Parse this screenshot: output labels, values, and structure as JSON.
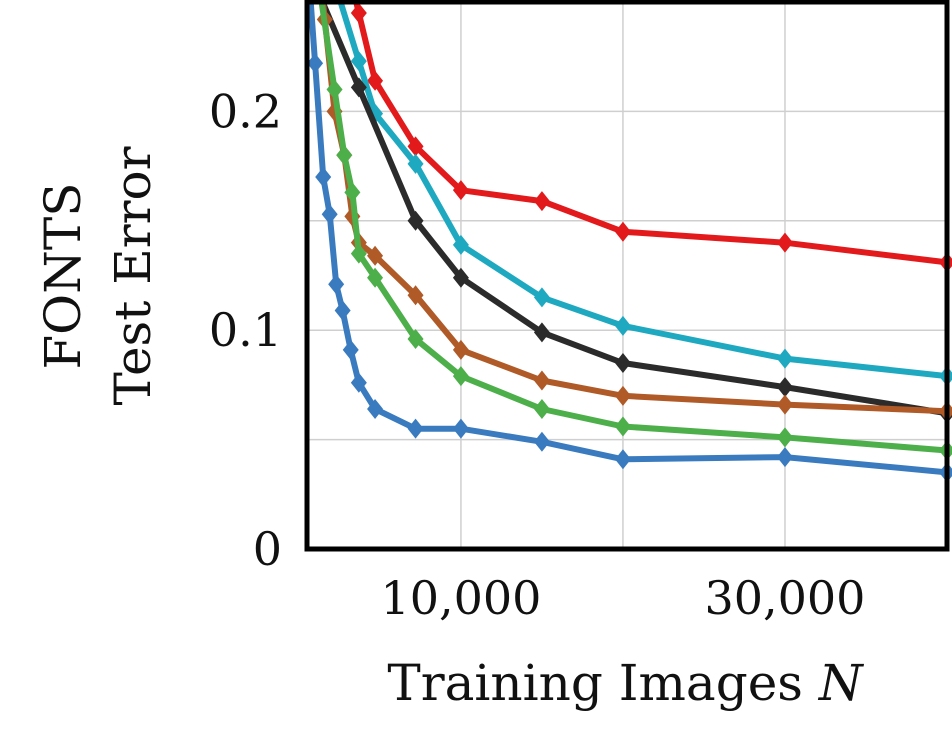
{
  "chart_data": {
    "type": "line",
    "ylabel": [
      "FONTS",
      "Test Error"
    ],
    "xlabel": "Training Images ",
    "xlabel_var": "N",
    "xlim": [
      500,
      40000
    ],
    "ylim": [
      0,
      0.25
    ],
    "xtick_values": [
      10000,
      20000,
      30000
    ],
    "xtick_labels": [
      "10,000",
      "30,000"
    ],
    "xtick_label_values": [
      10000,
      30000
    ],
    "ytick_values": [
      0,
      0.05,
      0.1,
      0.15,
      0.2
    ],
    "ytick_labels": [
      "0",
      "0.1",
      "0.2"
    ],
    "ytick_label_values": [
      0,
      0.1,
      0.2
    ],
    "grid": true,
    "series": [
      {
        "color": "#e31a1c",
        "marker": "diamond",
        "x": [
          3700,
          4700,
          7200,
          10000,
          15000,
          20000,
          30000,
          40000
        ],
        "y": [
          0.245,
          0.214,
          0.184,
          0.164,
          0.159,
          0.145,
          0.14,
          0.131
        ]
      },
      {
        "color": "#1fa9c1",
        "marker": "diamond",
        "x": [
          3700,
          4700,
          7200,
          10000,
          15000,
          20000,
          30000,
          40000
        ],
        "y": [
          0.223,
          0.199,
          0.176,
          0.139,
          0.115,
          0.102,
          0.087,
          0.079
        ]
      },
      {
        "color": "#2b2b2b",
        "marker": "diamond",
        "x": [
          3700,
          7200,
          10000,
          15000,
          20000,
          30000,
          40000
        ],
        "y": [
          0.211,
          0.15,
          0.124,
          0.099,
          0.085,
          0.074,
          0.062
        ]
      },
      {
        "color": "#b05a28",
        "marker": "diamond",
        "x": [
          1600,
          2200,
          2800,
          3300,
          3700,
          4700,
          7200,
          10000,
          15000,
          20000,
          30000,
          40000
        ],
        "y": [
          0.242,
          0.2,
          0.18,
          0.152,
          0.14,
          0.134,
          0.116,
          0.091,
          0.077,
          0.07,
          0.066,
          0.063
        ]
      },
      {
        "color": "#4daf4a",
        "marker": "diamond",
        "x": [
          2200,
          2800,
          3300,
          3700,
          4700,
          7200,
          10000,
          15000,
          20000,
          30000,
          40000
        ],
        "y": [
          0.21,
          0.18,
          0.163,
          0.135,
          0.124,
          0.096,
          0.079,
          0.064,
          0.056,
          0.051,
          0.045
        ]
      },
      {
        "color": "#3a7bbf",
        "marker": "diamond",
        "x": [
          1000,
          1500,
          1900,
          2300,
          2700,
          3200,
          3700,
          4700,
          7200,
          10000,
          15000,
          20000,
          30000,
          40000
        ],
        "y": [
          0.222,
          0.17,
          0.153,
          0.121,
          0.109,
          0.091,
          0.076,
          0.064,
          0.055,
          0.055,
          0.049,
          0.041,
          0.042,
          0.035
        ]
      }
    ]
  }
}
